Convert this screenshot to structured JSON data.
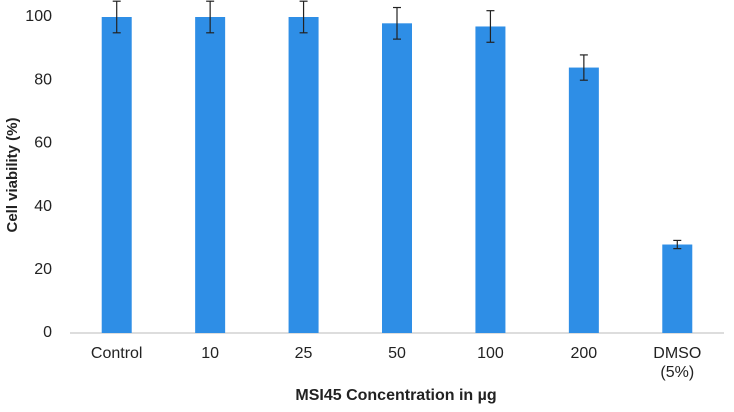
{
  "chart_data": {
    "type": "bar",
    "categories": [
      "Control",
      "10",
      "25",
      "50",
      "100",
      "200",
      "DMSO (5%)"
    ],
    "values": [
      100,
      100,
      100,
      98,
      97,
      84,
      28
    ],
    "errors": [
      5,
      5,
      5,
      5,
      5,
      4,
      1.3
    ],
    "color": "#2e8ee6",
    "ylim": [
      0,
      100
    ],
    "yticks": [
      0,
      20,
      40,
      60,
      80,
      100
    ],
    "xlabel": "MSI45 Concentration  in µg",
    "ylabel": "Cell viability (%)",
    "grid": false
  }
}
